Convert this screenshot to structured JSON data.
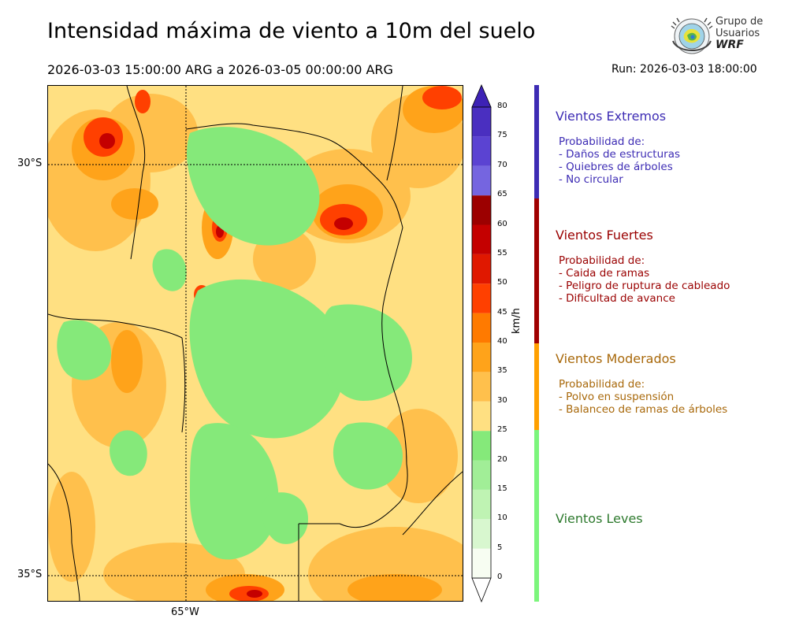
{
  "header": {
    "title": "Intensidad máxima de viento a 10m del suelo",
    "date_range": "2026-03-03 15:00:00 ARG  a  2026-03-05 00:00:00 ARG",
    "run": "Run: 2026-03-03 18:00:00"
  },
  "logo": {
    "line1": "Grupo de",
    "line2": "Usuarios",
    "line3": "WRF"
  },
  "axes": {
    "lat_labels": [
      "30°S",
      "35°S"
    ],
    "lon_labels": [
      "65°W"
    ]
  },
  "colorbar": {
    "units": "km/h",
    "ticks": [
      "0",
      "5",
      "10",
      "15",
      "20",
      "25",
      "30",
      "35",
      "40",
      "45",
      "50",
      "55",
      "60",
      "65",
      "70",
      "75",
      "80"
    ],
    "colors": [
      "#f7fdf2",
      "#d8f7cf",
      "#bff3b3",
      "#a1ee97",
      "#85e97a",
      "#ffe082",
      "#ffc04c",
      "#ffa31a",
      "#ff7a00",
      "#ff4000",
      "#e01800",
      "#c40000",
      "#9c0000",
      "#7565e0",
      "#5b43d2",
      "#4a2fc0"
    ],
    "extend_color": "#3d22b5"
  },
  "categories": [
    {
      "title": "Vientos Extremos",
      "color": "#3d2cb4",
      "bar_color": "#3d2cb4",
      "desc": [
        "Probabilidad de:",
        "- Daños de estructuras",
        "- Quiebres de árboles",
        "- No circular"
      ]
    },
    {
      "title": "Vientos Fuertes",
      "color": "#9a0000",
      "bar_color": "#a00000",
      "desc": [
        "Probabilidad de:",
        "- Caida de ramas",
        "- Peligro de ruptura de cableado",
        "- Dificultad de avance"
      ]
    },
    {
      "title": "Vientos Moderados",
      "color": "#a8680a",
      "bar_color": "#ffa000",
      "desc": [
        "Probabilidad de:",
        "- Polvo en suspensión",
        "- Balanceo de ramas de árboles"
      ]
    },
    {
      "title": "Vientos Leves",
      "color": "#2e7a2e",
      "bar_color": "#7cf57c",
      "desc": []
    }
  ]
}
